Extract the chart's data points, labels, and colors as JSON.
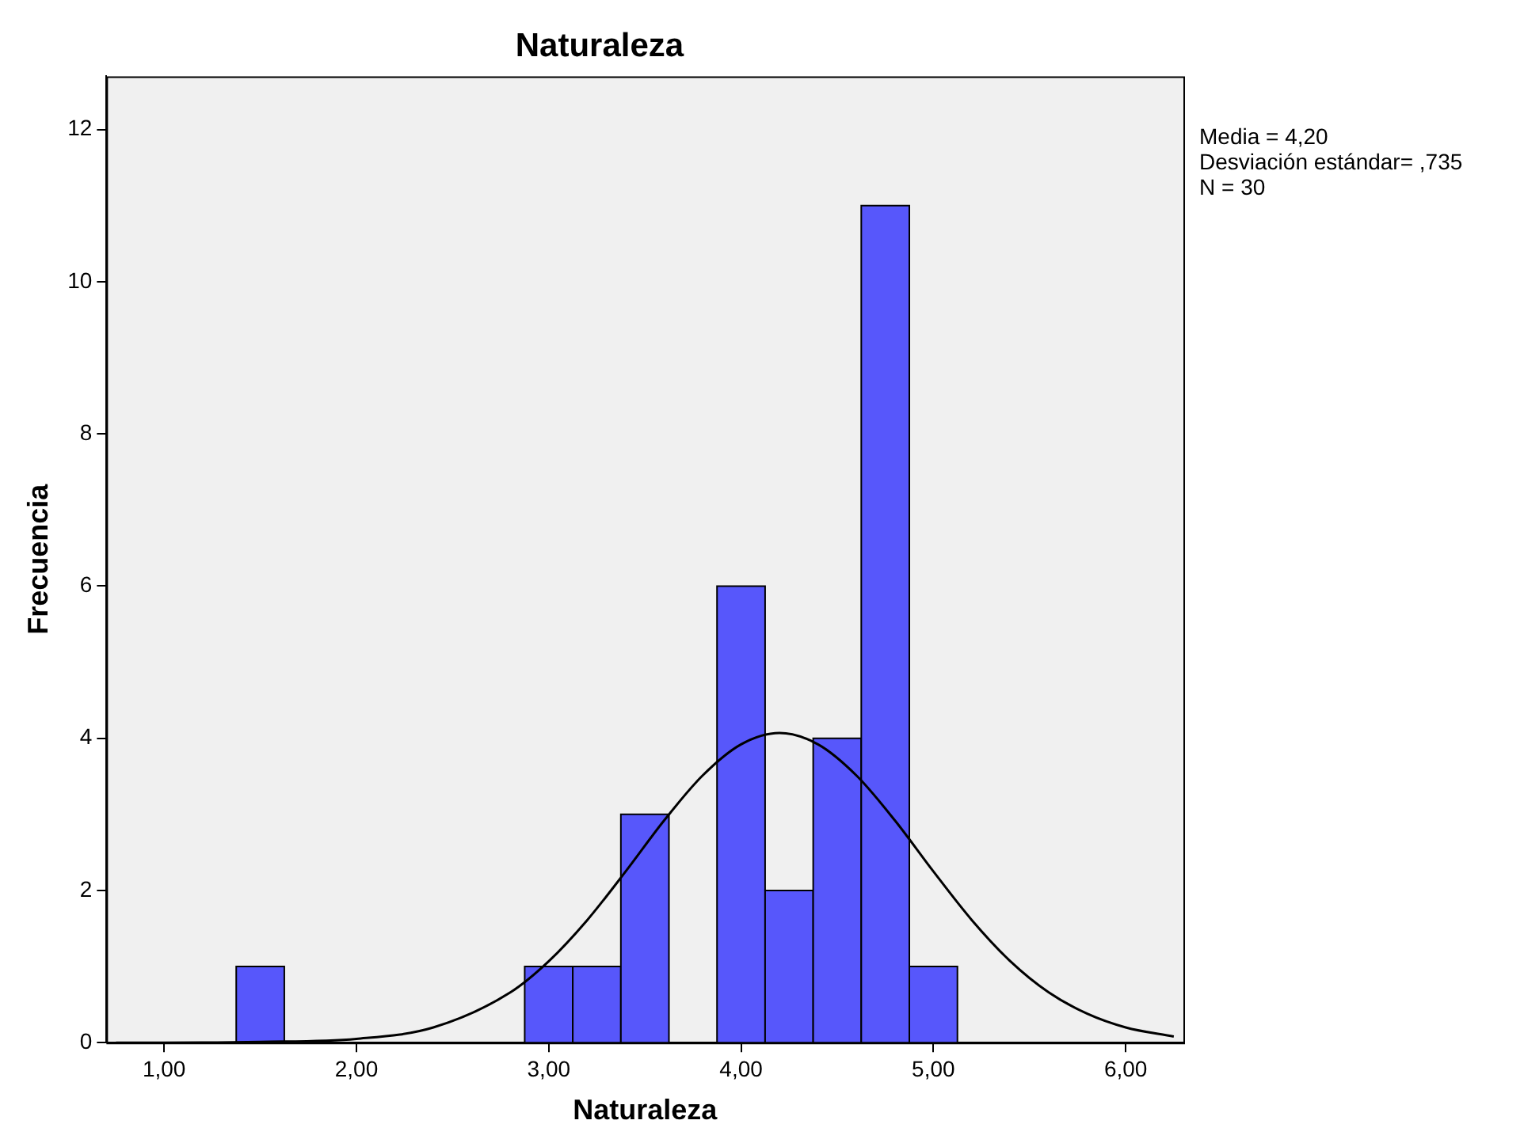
{
  "chart_data": {
    "type": "histogram",
    "title": "Naturaleza",
    "xlabel": "Naturaleza",
    "ylabel": "Frecuencia",
    "bins": [
      1.375,
      1.625,
      2.875,
      3.125,
      3.375,
      3.625,
      3.875,
      4.125,
      4.375,
      4.625,
      4.875,
      5.125
    ],
    "values": [
      1,
      0,
      1,
      1,
      3,
      0,
      6,
      2,
      4,
      11,
      1
    ],
    "color": "#5757fb",
    "series": [
      {
        "type": "line",
        "color": "#000000",
        "x": [
          0.75,
          1.0,
          1.5,
          2.0,
          2.4,
          2.8,
          3.0,
          3.2,
          3.4,
          3.6,
          3.8,
          4.0,
          4.2,
          4.4,
          4.6,
          4.8,
          5.0,
          5.2,
          5.4,
          5.6,
          5.8,
          6.0,
          6.25
        ],
        "values": [
          0,
          0,
          0.01,
          0.05,
          0.2,
          0.66,
          1.07,
          1.61,
          2.25,
          2.92,
          3.51,
          3.92,
          4.07,
          3.92,
          3.51,
          2.92,
          2.25,
          1.61,
          1.07,
          0.66,
          0.38,
          0.2,
          0.08
        ]
      }
    ],
    "xlim": [
      0.7,
      6.3
    ],
    "xticks": [
      {
        "value": 1,
        "label": "1,00"
      },
      {
        "value": 2,
        "label": "2,00"
      },
      {
        "value": 3,
        "label": "3,00"
      },
      {
        "value": 4,
        "label": "4,00"
      },
      {
        "value": 5,
        "label": "5,00"
      },
      {
        "value": 6,
        "label": "6,00"
      }
    ],
    "ylim": [
      0,
      12.7
    ],
    "yticks": [
      0,
      2,
      4,
      6,
      8,
      10,
      12
    ],
    "grid": false,
    "legend": false,
    "marker": "none",
    "line_style": "solid",
    "annotations": [
      "Media = 4,20",
      "Desviación estándar= ,735",
      "N = 30"
    ]
  }
}
